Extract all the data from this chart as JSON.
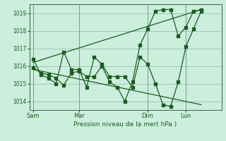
{
  "background_color": "#cceedd",
  "grid_color": "#88bbaa",
  "line_color": "#1a5c20",
  "vline_color": "#336644",
  "xlabel": "Pression niveau de la mer( hPa )",
  "ylim": [
    1013.5,
    1019.5
  ],
  "yticks": [
    1014,
    1015,
    1016,
    1017,
    1018,
    1019
  ],
  "xtick_labels": [
    "Sam",
    "Mar",
    "Dim",
    "Lun"
  ],
  "xtick_positions": [
    0,
    36,
    90,
    120
  ],
  "vline_positions": [
    0,
    36,
    90,
    120
  ],
  "xlim": [
    -3,
    148
  ],
  "series_with_markers": [
    {
      "x": [
        0,
        6,
        12,
        18,
        24,
        30,
        36,
        42,
        48,
        54,
        60,
        66,
        72,
        78,
        84,
        90,
        96,
        102,
        108,
        114,
        120,
        126,
        132
      ],
      "y": [
        1016.4,
        1015.5,
        1015.3,
        1015.0,
        1016.8,
        1015.8,
        1015.8,
        1014.8,
        1016.5,
        1016.1,
        1015.4,
        1015.4,
        1015.4,
        1014.8,
        1016.5,
        1016.1,
        1015.0,
        1013.8,
        1013.7,
        1015.1,
        1017.1,
        1018.1,
        1019.1
      ]
    },
    {
      "x": [
        0,
        6,
        12,
        18,
        24,
        30,
        36,
        42,
        48,
        54,
        60,
        66,
        72,
        78,
        84,
        90,
        96,
        102,
        108,
        114,
        120,
        126,
        132
      ],
      "y": [
        1015.9,
        1015.6,
        1015.5,
        1015.3,
        1014.9,
        1015.6,
        1015.7,
        1015.4,
        1015.4,
        1016.0,
        1015.1,
        1014.8,
        1014.0,
        1015.1,
        1017.2,
        1018.1,
        1019.1,
        1019.2,
        1019.2,
        1017.7,
        1018.2,
        1019.1,
        1019.2
      ]
    }
  ],
  "trend_lines": [
    {
      "x": [
        0,
        132
      ],
      "y": [
        1016.2,
        1019.2
      ]
    },
    {
      "x": [
        0,
        132
      ],
      "y": [
        1015.8,
        1013.8
      ]
    }
  ]
}
